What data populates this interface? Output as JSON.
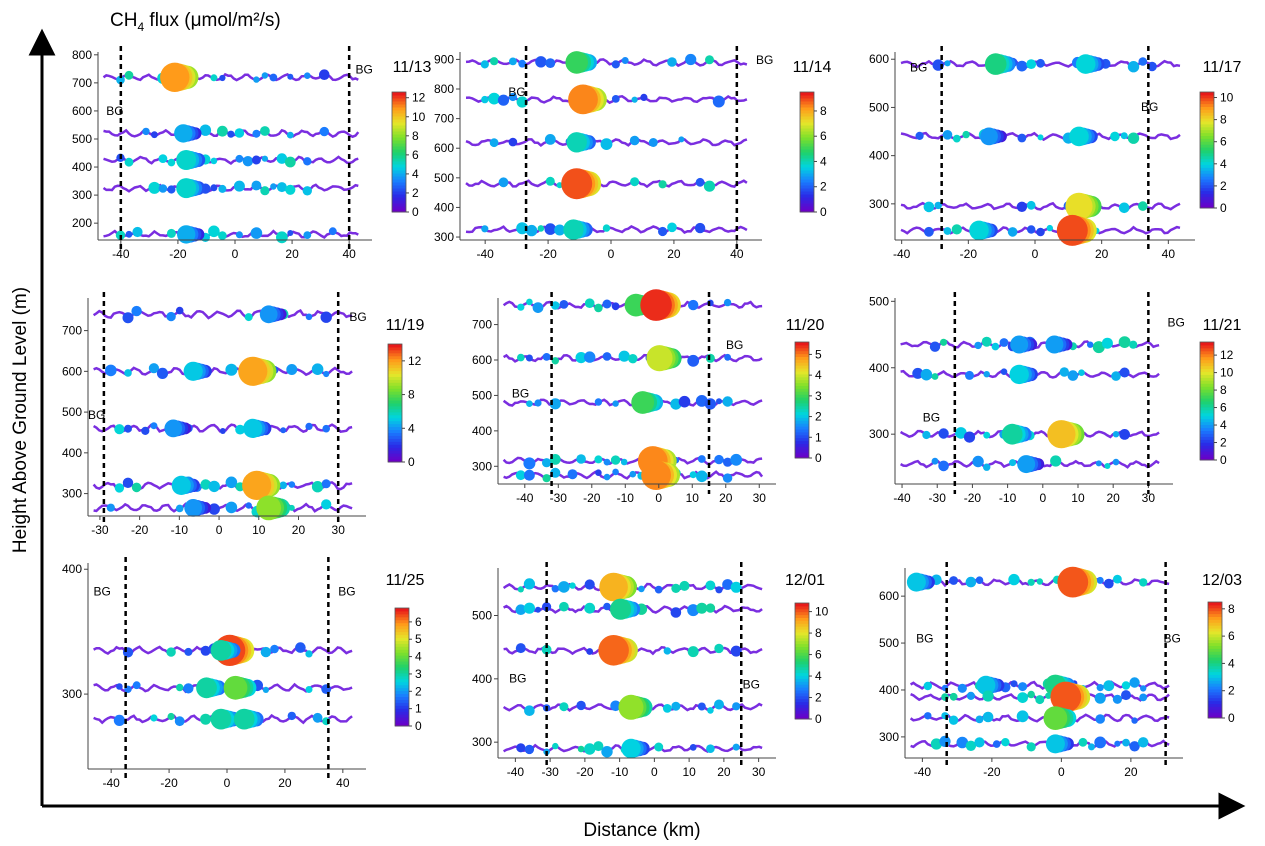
{
  "figure": {
    "flux_label": "CH",
    "flux_sub": "4",
    "flux_rest": " flux (μmol/m²/s)",
    "ylabel": "Height Above Ground Level (m)",
    "xlabel": "Distance (km)",
    "bg_label": "BG",
    "colorscale": [
      "#6a00c8",
      "#2a2ae6",
      "#1a7cff",
      "#00d5e0",
      "#1fd06a",
      "#7ee02a",
      "#e6e62a",
      "#ff9a1a",
      "#e81a1a"
    ]
  },
  "chart_data": [
    {
      "type": "scatter",
      "title": "11/13",
      "xticks": [
        -40,
        -20,
        0,
        20,
        40
      ],
      "xlim": [
        -48,
        48
      ],
      "yticks": [
        200,
        300,
        400,
        500,
        600,
        700,
        800
      ],
      "ylim": [
        140,
        810
      ],
      "cbar_ticks": [
        0,
        2,
        4,
        6,
        8,
        10,
        12
      ],
      "cbar_max": 12.6,
      "bg_lines": [
        -40,
        40
      ],
      "legs": [
        {
          "alt": 720,
          "hot": [
            [
              -19,
              11
            ]
          ]
        },
        {
          "alt": 520,
          "hot": [
            [
              -16,
              4
            ]
          ]
        },
        {
          "alt": 425,
          "hot": [
            [
              -15,
              5
            ]
          ]
        },
        {
          "alt": 325,
          "hot": [
            [
              -15,
              5
            ]
          ]
        },
        {
          "alt": 160,
          "hot": [
            [
              -15,
              4
            ]
          ]
        }
      ]
    },
    {
      "type": "scatter",
      "title": "11/14",
      "xticks": [
        -40,
        -20,
        0,
        20,
        40
      ],
      "xlim": [
        -48,
        48
      ],
      "yticks": [
        300,
        400,
        500,
        600,
        700,
        800,
        900
      ],
      "ylim": [
        290,
        925
      ],
      "cbar_ticks": [
        0,
        2,
        4,
        6,
        8
      ],
      "cbar_max": 9.5,
      "bg_lines": [
        -27,
        40
      ],
      "legs": [
        {
          "alt": 890,
          "hot": [
            [
              -9,
              5
            ]
          ]
        },
        {
          "alt": 765,
          "hot": [
            [
              -7,
              8.5
            ]
          ]
        },
        {
          "alt": 620,
          "hot": [
            [
              -9,
              4
            ]
          ]
        },
        {
          "alt": 480,
          "hot": [
            [
              -9,
              9
            ]
          ]
        },
        {
          "alt": 325,
          "hot": [
            [
              -10,
              4
            ]
          ]
        }
      ]
    },
    {
      "type": "scatter",
      "title": "11/17",
      "xticks": [
        -40,
        -20,
        0,
        20,
        40
      ],
      "xlim": [
        -42,
        48
      ],
      "yticks": [
        300,
        400,
        500,
        600
      ],
      "ylim": [
        225,
        615
      ],
      "cbar_ticks": [
        0,
        2,
        4,
        6,
        8,
        10
      ],
      "cbar_max": 10.5,
      "bg_lines": [
        -28,
        34
      ],
      "legs": [
        {
          "alt": 590,
          "hot": [
            [
              -10,
              5
            ],
            [
              17,
              4
            ]
          ]
        },
        {
          "alt": 440,
          "hot": [
            [
              -12,
              3
            ],
            [
              15,
              4
            ]
          ]
        },
        {
          "alt": 295,
          "hot": [
            [
              15,
              8
            ]
          ]
        },
        {
          "alt": 245,
          "hot": [
            [
              -15,
              4
            ],
            [
              13,
              10
            ]
          ]
        }
      ]
    },
    {
      "type": "scatter",
      "title": "11/19",
      "xticks": [
        -30,
        -20,
        -10,
        0,
        10,
        20,
        30
      ],
      "xlim": [
        -33,
        37
      ],
      "yticks": [
        300,
        400,
        500,
        600,
        700
      ],
      "ylim": [
        245,
        780
      ],
      "cbar_ticks": [
        0,
        4,
        8,
        12
      ],
      "cbar_max": 14,
      "bg_lines": [
        -29,
        30
      ],
      "legs": [
        {
          "alt": 740,
          "hot": [
            [
              14,
              4
            ]
          ]
        },
        {
          "alt": 600,
          "hot": [
            [
              -5,
              5
            ],
            [
              10,
              12
            ]
          ]
        },
        {
          "alt": 460,
          "hot": [
            [
              -10,
              4
            ],
            [
              10,
              5
            ]
          ]
        },
        {
          "alt": 320,
          "hot": [
            [
              -8,
              5
            ],
            [
              11,
              12
            ]
          ]
        },
        {
          "alt": 265,
          "hot": [
            [
              -5,
              4
            ],
            [
              14,
              9
            ]
          ]
        }
      ]
    },
    {
      "type": "scatter",
      "title": "11/20",
      "xticks": [
        -40,
        -30,
        -20,
        -10,
        0,
        10,
        20,
        30
      ],
      "xlim": [
        -48,
        35
      ],
      "yticks": [
        300,
        400,
        500,
        600,
        700
      ],
      "ylim": [
        250,
        775
      ],
      "cbar_ticks": [
        0,
        1,
        2,
        3,
        4,
        5
      ],
      "cbar_max": 5.6,
      "bg_lines": [
        -32,
        15
      ],
      "legs": [
        {
          "alt": 755,
          "hot": [
            [
              -5,
              3
            ],
            [
              1,
              5.5
            ]
          ]
        },
        {
          "alt": 605,
          "hot": [
            [
              2,
              4
            ]
          ]
        },
        {
          "alt": 480,
          "hot": [
            [
              -3,
              3
            ]
          ]
        },
        {
          "alt": 315,
          "hot": [
            [
              0,
              5
            ]
          ]
        },
        {
          "alt": 275,
          "hot": [
            [
              1,
              5
            ]
          ]
        }
      ]
    },
    {
      "type": "scatter",
      "title": "11/21",
      "xticks": [
        -40,
        -30,
        -20,
        -10,
        0,
        10,
        20,
        30
      ],
      "xlim": [
        -42,
        37
      ],
      "yticks": [
        300,
        400,
        500
      ],
      "ylim": [
        225,
        505
      ],
      "cbar_ticks": [
        0,
        2,
        4,
        6,
        8,
        10,
        12
      ],
      "cbar_max": 13.5,
      "bg_lines": [
        -25,
        30
      ],
      "legs": [
        {
          "alt": 435,
          "hot": [
            [
              -5,
              4
            ],
            [
              5,
              4
            ]
          ]
        },
        {
          "alt": 390,
          "hot": [
            [
              -5,
              5
            ]
          ]
        },
        {
          "alt": 300,
          "hot": [
            [
              -7,
              6
            ],
            [
              7,
              11
            ]
          ]
        },
        {
          "alt": 255,
          "hot": [
            [
              -3,
              4
            ]
          ]
        }
      ]
    },
    {
      "type": "scatter",
      "title": "11/25",
      "xticks": [
        -40,
        -20,
        0,
        20,
        40
      ],
      "xlim": [
        -48,
        48
      ],
      "yticks": [
        300,
        400
      ],
      "ylim": [
        240,
        405
      ],
      "cbar_ticks": [
        0,
        1,
        2,
        3,
        4,
        5,
        6
      ],
      "cbar_max": 6.8,
      "bg_lines": [
        -35,
        35
      ],
      "legs": [
        {
          "alt": 335,
          "hot": [
            [
              3,
              6.5
            ],
            [
              0,
              3
            ]
          ]
        },
        {
          "alt": 305,
          "hot": [
            [
              -5,
              3
            ],
            [
              5,
              4
            ]
          ]
        },
        {
          "alt": 280,
          "hot": [
            [
              0,
              3
            ],
            [
              8,
              3
            ]
          ]
        }
      ]
    },
    {
      "type": "scatter",
      "title": "12/01",
      "xticks": [
        -40,
        -30,
        -20,
        -10,
        0,
        10,
        20,
        30
      ],
      "xlim": [
        -45,
        35
      ],
      "yticks": [
        300,
        400,
        500
      ],
      "ylim": [
        275,
        575
      ],
      "cbar_ticks": [
        0,
        2,
        4,
        6,
        8,
        10
      ],
      "cbar_max": 10.8,
      "bg_lines": [
        -31,
        25
      ],
      "legs": [
        {
          "alt": 545,
          "hot": [
            [
              -10,
              9
            ]
          ]
        },
        {
          "alt": 510,
          "hot": [
            [
              -8,
              5
            ]
          ]
        },
        {
          "alt": 445,
          "hot": [
            [
              -10,
              10
            ]
          ]
        },
        {
          "alt": 355,
          "hot": [
            [
              -5,
              7
            ]
          ]
        },
        {
          "alt": 290,
          "hot": [
            [
              -5,
              4
            ]
          ]
        }
      ]
    },
    {
      "type": "scatter",
      "title": "12/03",
      "xticks": [
        -40,
        -20,
        0,
        20
      ],
      "xlim": [
        -45,
        35
      ],
      "yticks": [
        300,
        400,
        500,
        600
      ],
      "ylim": [
        255,
        660
      ],
      "cbar_ticks": [
        0,
        2,
        4,
        6,
        8
      ],
      "cbar_max": 8.5,
      "bg_lines": [
        -33,
        30
      ],
      "legs": [
        {
          "alt": 630,
          "hot": [
            [
              5,
              8
            ],
            [
              -40,
              3
            ]
          ]
        },
        {
          "alt": 410,
          "hot": [
            [
              -20,
              3
            ],
            [
              0,
              4
            ]
          ]
        },
        {
          "alt": 385,
          "hot": [
            [
              3,
              8
            ]
          ]
        },
        {
          "alt": 340,
          "hot": [
            [
              0,
              5
            ]
          ]
        },
        {
          "alt": 285,
          "hot": [
            [
              0,
              3
            ]
          ]
        }
      ]
    }
  ]
}
